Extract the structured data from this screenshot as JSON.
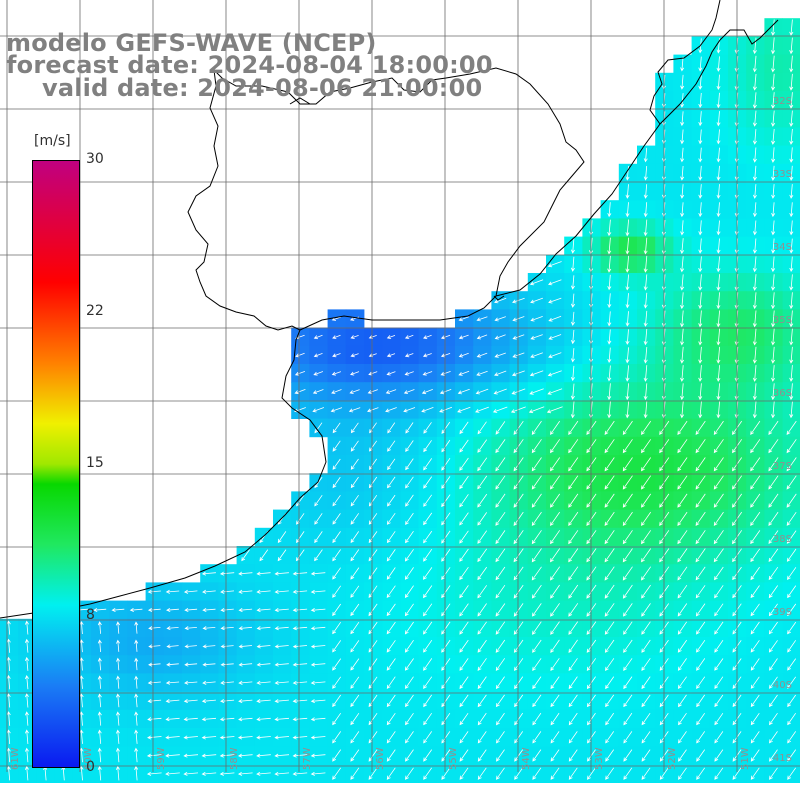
{
  "title": {
    "model": "modelo GEFS-WAVE (NCEP)",
    "forecast": "forecast date: 2024-08-04 18:00:00",
    "valid": "valid date: 2024-08-06 21:00:00"
  },
  "colorbar": {
    "unit": "[m/s]",
    "ticks": [
      "30",
      "22",
      "15",
      "8",
      "0"
    ],
    "range": [
      0,
      30
    ],
    "stops": [
      {
        "v": 0,
        "color": "#0a1af0"
      },
      {
        "v": 4,
        "color": "#1a7cf5"
      },
      {
        "v": 8,
        "color": "#00f0f0"
      },
      {
        "v": 11,
        "color": "#20e860"
      },
      {
        "v": 14,
        "color": "#08d800"
      },
      {
        "v": 15,
        "color": "#a0e800"
      },
      {
        "v": 17,
        "color": "#f0f000"
      },
      {
        "v": 20,
        "color": "#ff8000"
      },
      {
        "v": 24,
        "color": "#ff0000"
      },
      {
        "v": 30,
        "color": "#c00080"
      }
    ]
  },
  "lat_labels": [
    "32S",
    "33S",
    "34S",
    "35S",
    "36S",
    "37S",
    "38S",
    "39S",
    "40S",
    "41S"
  ],
  "lon_labels": [
    "61W",
    "60W",
    "59W",
    "58W",
    "57W",
    "56W",
    "55W",
    "54W",
    "53W",
    "52W",
    "51W"
  ],
  "colors": {
    "grid": "#6a6a6a",
    "coast": "#000000",
    "arrows": "#ffffff",
    "title": "#808080"
  }
}
